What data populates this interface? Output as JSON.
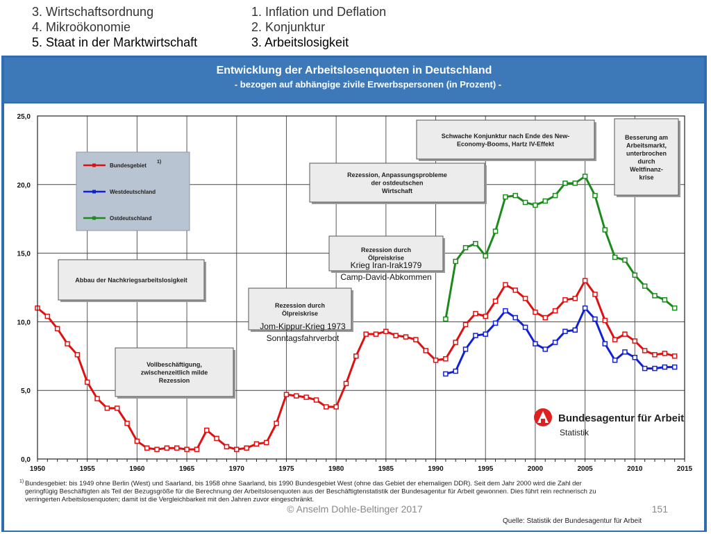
{
  "nav": {
    "left": [
      "3. Wirtschaftsordnung",
      "4. Mikroökonomie",
      "5. Staat in der Marktwirtschaft"
    ],
    "right": [
      "1. Inflation und Deflation",
      "2. Konjunktur",
      "3. Arbeitslosigkeit"
    ]
  },
  "banner": {
    "title": "Entwicklung der Arbeitslosenquoten in Deutschland",
    "subtitle": "-  bezogen auf abhängige zivile Erwerbspersonen (in Prozent) -"
  },
  "chart_data": {
    "type": "line",
    "xlim": [
      1950,
      2015
    ],
    "ylim": [
      0,
      25
    ],
    "x_ticks": [
      1950,
      1955,
      1960,
      1965,
      1970,
      1975,
      1980,
      1985,
      1990,
      1995,
      2000,
      2005,
      2010,
      2015
    ],
    "y_ticks": [
      0,
      5,
      10,
      15,
      20,
      25
    ],
    "y_tick_labels": [
      "0,0",
      "5,0",
      "10,0",
      "15,0",
      "20,0",
      "25,0"
    ],
    "grid": true,
    "legend": {
      "placement": "top-left",
      "footnote_mark": "1)",
      "entries": [
        "Bundesgebiet",
        "Westdeutschland",
        "Ostdeutschland"
      ]
    },
    "series": [
      {
        "name": "Bundesgebiet",
        "color": "#e01010",
        "x": [
          1950,
          1951,
          1952,
          1953,
          1954,
          1955,
          1956,
          1957,
          1958,
          1959,
          1960,
          1961,
          1962,
          1963,
          1964,
          1965,
          1966,
          1967,
          1968,
          1969,
          1970,
          1971,
          1972,
          1973,
          1974,
          1975,
          1976,
          1977,
          1978,
          1979,
          1980,
          1981,
          1982,
          1983,
          1984,
          1985,
          1986,
          1987,
          1988,
          1989,
          1990,
          1991,
          1992,
          1993,
          1994,
          1995,
          1996,
          1997,
          1998,
          1999,
          2000,
          2001,
          2002,
          2003,
          2004,
          2005,
          2006,
          2007,
          2008,
          2009,
          2010,
          2011,
          2012,
          2013,
          2014
        ],
        "y": [
          11.0,
          10.4,
          9.5,
          8.4,
          7.6,
          5.6,
          4.4,
          3.7,
          3.7,
          2.6,
          1.3,
          0.8,
          0.7,
          0.8,
          0.8,
          0.7,
          0.7,
          2.1,
          1.5,
          0.9,
          0.7,
          0.8,
          1.1,
          1.2,
          2.6,
          4.7,
          4.6,
          4.5,
          4.3,
          3.8,
          3.8,
          5.5,
          7.5,
          9.1,
          9.1,
          9.3,
          9.0,
          8.9,
          8.7,
          7.9,
          7.2,
          7.3,
          8.5,
          9.8,
          10.6,
          10.4,
          11.5,
          12.7,
          12.3,
          11.7,
          10.7,
          10.3,
          10.8,
          11.6,
          11.7,
          13.0,
          12.0,
          10.1,
          8.7,
          9.1,
          8.6,
          7.9,
          7.6,
          7.7,
          7.5
        ]
      },
      {
        "name": "Westdeutschland",
        "color": "#1020d8",
        "x": [
          1991,
          1992,
          1993,
          1994,
          1995,
          1996,
          1997,
          1998,
          1999,
          2000,
          2001,
          2002,
          2003,
          2004,
          2005,
          2006,
          2007,
          2008,
          2009,
          2010,
          2011,
          2012,
          2013,
          2014
        ],
        "y": [
          6.2,
          6.4,
          8.0,
          9.0,
          9.1,
          9.9,
          10.8,
          10.3,
          9.6,
          8.4,
          8.0,
          8.5,
          9.3,
          9.4,
          11.0,
          10.2,
          8.4,
          7.2,
          7.8,
          7.4,
          6.6,
          6.6,
          6.7,
          6.7
        ]
      },
      {
        "name": "Ostdeutschland",
        "color": "#1a8a1a",
        "x": [
          1991,
          1992,
          1993,
          1994,
          1995,
          1996,
          1997,
          1998,
          1999,
          2000,
          2001,
          2002,
          2003,
          2004,
          2005,
          2006,
          2007,
          2008,
          2009,
          2010,
          2011,
          2012,
          2013,
          2014
        ],
        "y": [
          10.2,
          14.4,
          15.4,
          15.7,
          14.8,
          16.6,
          19.1,
          19.2,
          18.7,
          18.5,
          18.8,
          19.2,
          20.1,
          20.1,
          20.6,
          19.2,
          16.7,
          14.7,
          14.5,
          13.4,
          12.6,
          11.9,
          11.6,
          11.0
        ]
      }
    ],
    "annotations": [
      {
        "lines": [
          "Abbau der Nachkriegsarbeitslosigkeit"
        ]
      },
      {
        "lines": [
          "Vollbeschäftigung,",
          "zwischenzeitlich milde",
          "Rezession"
        ]
      },
      {
        "lines": [
          "Rezession durch",
          "Ölpreiskrise"
        ]
      },
      {
        "lines": [
          "Rezession durch",
          "Ölpreiskrise"
        ]
      },
      {
        "lines": [
          "Rezession, Anpassungsprobleme",
          "der ostdeutschen",
          "Wirtschaft"
        ]
      },
      {
        "lines": [
          "Schwache Konjunktur nach Ende des New-",
          "Economy-Booms,  Hartz IV-Effekt"
        ]
      },
      {
        "lines": [
          "Besserung  am",
          "Arbeitsmarkt,",
          "unterbrochen",
          "durch",
          "Weltfinanz-",
          "krise"
        ]
      }
    ],
    "overlay_labels": [
      "Jom-Kippur-Krieg 1973",
      "Sonntagsfahrverbot",
      "Krieg Iran-Irak1979",
      "Camp-David-Abkommen"
    ]
  },
  "logo": {
    "name": "Bundesagentur für Arbeit",
    "sub": "Statistik",
    "color": "#e02020"
  },
  "footnote": {
    "mark": "1)",
    "lines": [
      "Bundesgebiet:  bis 1949 ohne Berlin (West) und Saarland, bis 1958 ohne Saarland, bis 1990 Bundesgebiet West (ohne das Gebiet der ehemaligen DDR). Seit dem Jahr 2000 wird die Zahl der",
      "geringfügig  Beschäftigten als Teil der Bezugsgröße für die Berechnung der Arbeitslosenquoten aus der Beschäftigtenstatistik der Bundesagentur für Arbeit gewonnen. Dies führt rein rechnerisch zu",
      "verringerten  Arbeitslosenquoten;  damit ist die Vergleichbarkeit  mit den Jahren  zuvor eingeschränkt."
    ]
  },
  "copyright": "© Anselm Dohle-Beltinger 2017",
  "page_number": "151",
  "source": "Quelle:  Statistik der Bundesagentur  für  Arbeit"
}
